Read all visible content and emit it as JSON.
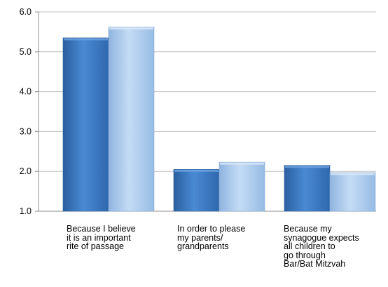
{
  "chart_data": {
    "type": "bar",
    "categories": [
      "Because I believe\nit is an important\nrite of passage",
      "In order to please\nmy parents/\ngrandparents",
      "Because my\nsynagogue expects\nall children to\ngo through\nBar/Bat Mitzvah"
    ],
    "series": [
      {
        "values": [
          5.35,
          2.05,
          2.15
        ],
        "color": "#3b78c4"
      },
      {
        "values": [
          5.62,
          2.23,
          1.97
        ],
        "color": "#a8c8ec"
      }
    ],
    "y_ticks": [
      "1.0",
      "2.0",
      "3.0",
      "4.0",
      "5.0",
      "6.0"
    ],
    "ylim": [
      1.0,
      6.0
    ],
    "grid": true,
    "xlabel": "",
    "ylabel": "",
    "title": ""
  }
}
